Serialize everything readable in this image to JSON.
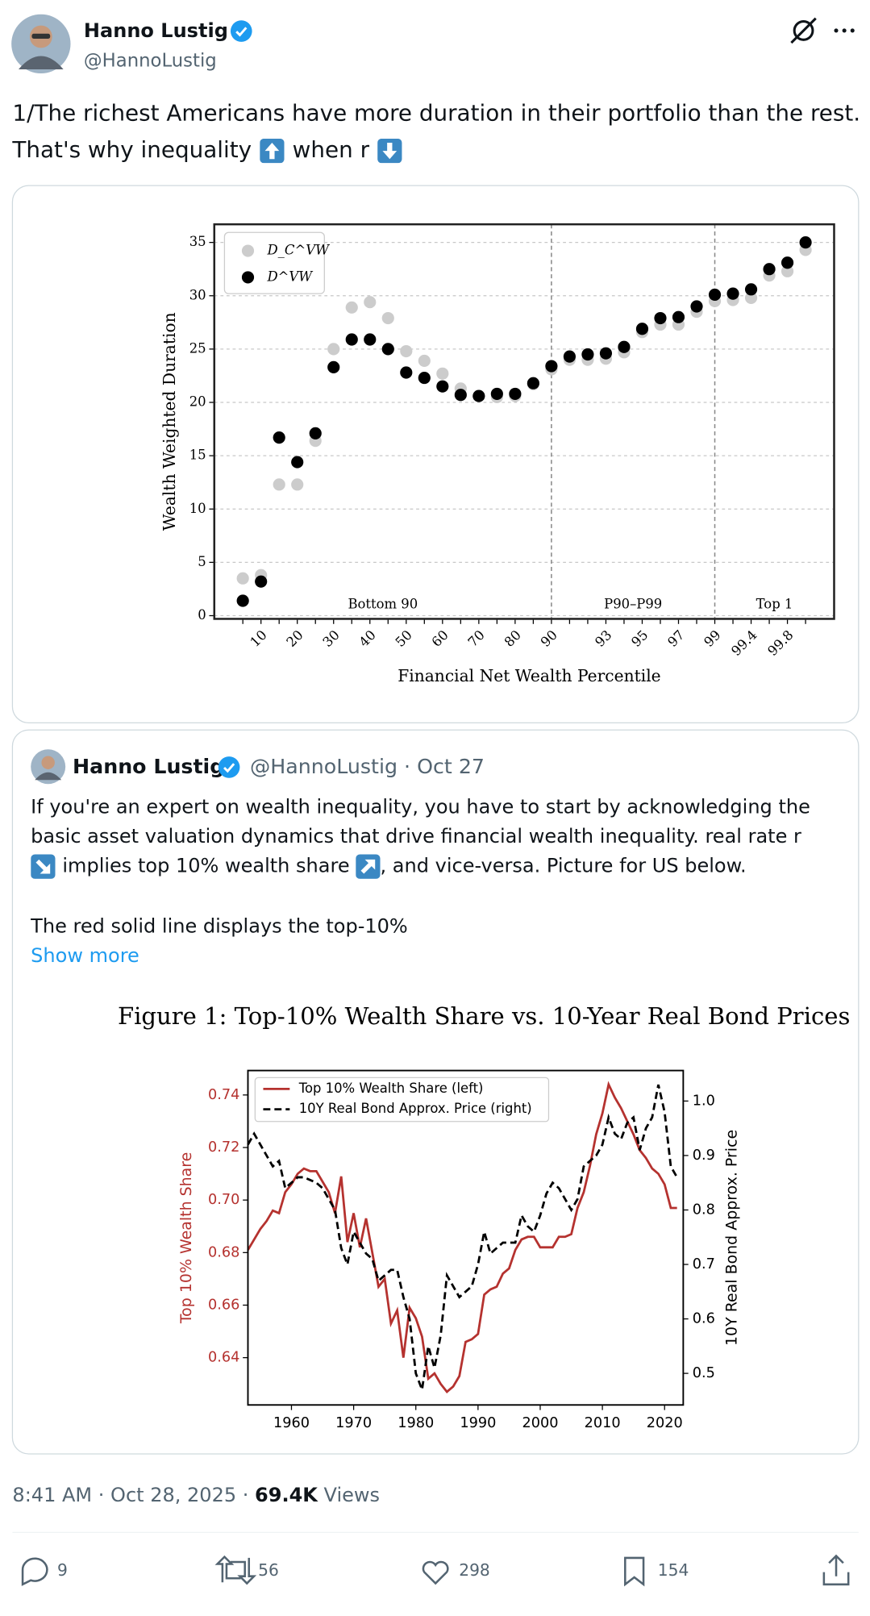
{
  "tweet": {
    "author": {
      "name": "Hanno Lustig",
      "handle": "@HannoLustig"
    },
    "text": [
      "1/The richest Americans have more duration in their portfolio than the rest.",
      "That's why inequality",
      "when r"
    ],
    "quote": {
      "name": "Hanno Lustig",
      "meta": "@HannoLustig · Oct 27",
      "lines": [
        "If you're an expert on wealth inequality, you have to start by acknowledging the",
        "basic asset valuation dynamics that drive financial wealth inequality.  real rate r",
        "implies top 10% wealth share",
        ", and vice-versa. Picture for US below.",
        "The red solid line displays the top-10%"
      ],
      "show_more": "Show more"
    },
    "footer": {
      "time": "8:41 AM · Oct 28, 2025 · ",
      "views": "69.4K",
      "views_label": " Views"
    },
    "actions": {
      "replies": 9,
      "reposts": 56,
      "likes": 298,
      "bookmarks": 154
    }
  },
  "chart_data": [
    {
      "type": "scatter",
      "xlabel": "Financial Net Wealth Percentile",
      "ylabel": "Wealth Weighted Duration",
      "categories": [
        null,
        "10",
        null,
        "20",
        null,
        "30",
        null,
        "40",
        null,
        "50",
        null,
        "60",
        null,
        "70",
        null,
        "80",
        null,
        "90",
        null,
        null,
        "93",
        null,
        "95",
        null,
        "97",
        null,
        "99",
        null,
        "99.4",
        null,
        "99.8",
        null
      ],
      "series": [
        {
          "name": "D_C^VW",
          "color": "#cccccc",
          "values": [
            3.5,
            3.8,
            12.3,
            12.3,
            16.4,
            25.0,
            28.9,
            29.4,
            27.9,
            24.8,
            23.9,
            22.7,
            21.3,
            20.6,
            20.5,
            20.6,
            21.7,
            23.1,
            24.0,
            24.0,
            24.1,
            24.7,
            26.6,
            27.3,
            27.3,
            28.5,
            29.5,
            29.6,
            29.8,
            31.9,
            32.3,
            34.3
          ]
        },
        {
          "name": "D^VW",
          "color": "#000000",
          "values": [
            1.4,
            3.2,
            16.7,
            14.4,
            17.1,
            23.3,
            25.9,
            25.9,
            25.0,
            22.8,
            22.3,
            21.5,
            20.7,
            20.6,
            20.8,
            20.8,
            21.8,
            23.4,
            24.3,
            24.5,
            24.6,
            25.2,
            26.9,
            27.9,
            28.0,
            29.0,
            30.1,
            30.2,
            30.6,
            32.5,
            33.1,
            35.0
          ]
        }
      ],
      "ylim": [
        -0.3,
        36.7
      ],
      "yticks": [
        0,
        5,
        10,
        15,
        20,
        25,
        30,
        35
      ],
      "grid": true,
      "legend": "upper left",
      "vlines": [
        "90",
        "99"
      ],
      "annotations": [
        "Bottom 90",
        "P90–P99",
        "Top 1"
      ]
    },
    {
      "type": "line",
      "title": "Figure 1: Top-10% Wealth Share vs. 10-Year Real Bond Prices",
      "ylabel": "Top 10% Wealth Share",
      "y2label": "10Y Real Bond Approx. Price",
      "x": [
        1953,
        1954,
        1955,
        1956,
        1957,
        1958,
        1959,
        1960,
        1961,
        1962,
        1963,
        1964,
        1965,
        1966,
        1967,
        1968,
        1969,
        1970,
        1971,
        1972,
        1973,
        1974,
        1975,
        1976,
        1977,
        1978,
        1979,
        1980,
        1981,
        1982,
        1983,
        1984,
        1985,
        1986,
        1987,
        1988,
        1989,
        1990,
        1991,
        1992,
        1993,
        1994,
        1995,
        1996,
        1997,
        1998,
        1999,
        2000,
        2001,
        2002,
        2003,
        2004,
        2005,
        2006,
        2007,
        2008,
        2009,
        2010,
        2011,
        2012,
        2013,
        2014,
        2015,
        2016,
        2017,
        2018,
        2019,
        2020,
        2021,
        2022
      ],
      "series": [
        {
          "name": "Top 10% Wealth Share (left)",
          "color": "#b5322f",
          "linestyle": "solid",
          "values": [
            0.681,
            0.685,
            0.689,
            0.692,
            0.696,
            0.695,
            0.703,
            0.706,
            0.71,
            0.712,
            0.711,
            0.711,
            0.707,
            0.703,
            0.695,
            0.709,
            0.684,
            0.695,
            0.682,
            0.693,
            0.68,
            0.667,
            0.67,
            0.653,
            0.658,
            0.64,
            0.659,
            0.655,
            0.648,
            0.632,
            0.634,
            0.63,
            0.627,
            0.629,
            0.633,
            0.646,
            0.647,
            0.649,
            0.664,
            0.666,
            0.667,
            0.672,
            0.674,
            0.681,
            0.685,
            0.686,
            0.686,
            0.682,
            0.682,
            0.682,
            0.686,
            0.686,
            0.687,
            0.697,
            0.703,
            0.713,
            0.725,
            0.733,
            0.744,
            0.739,
            0.735,
            0.73,
            0.725,
            0.719,
            0.716,
            0.712,
            0.71,
            0.706,
            0.697,
            0.697
          ]
        },
        {
          "name": "10Y Real Bond Approx. Price (right)",
          "color": "#000000",
          "linestyle": "dashed",
          "axis": "y2",
          "values": [
            0.92,
            0.94,
            0.92,
            0.9,
            0.88,
            0.89,
            0.84,
            0.85,
            0.86,
            0.86,
            0.855,
            0.85,
            0.84,
            0.82,
            0.8,
            0.73,
            0.7,
            0.76,
            0.74,
            0.72,
            0.71,
            0.67,
            0.68,
            0.69,
            0.69,
            0.64,
            0.6,
            0.5,
            0.47,
            0.55,
            0.51,
            0.57,
            0.68,
            0.66,
            0.64,
            0.65,
            0.66,
            0.7,
            0.76,
            0.72,
            0.73,
            0.74,
            0.74,
            0.74,
            0.79,
            0.77,
            0.76,
            0.79,
            0.83,
            0.85,
            0.84,
            0.82,
            0.8,
            0.82,
            0.88,
            0.89,
            0.9,
            0.92,
            0.97,
            0.94,
            0.93,
            0.96,
            0.97,
            0.91,
            0.95,
            0.97,
            1.03,
            0.98,
            0.88,
            0.86
          ]
        }
      ],
      "xlim": [
        1953,
        2023
      ],
      "xticks": [
        1960,
        1970,
        1980,
        1990,
        2000,
        2010,
        2020
      ],
      "ylim": [
        0.622,
        0.7493
      ],
      "yticks": [
        0.64,
        0.66,
        0.68,
        {
          "value": 0.7,
          "label": "0.70"
        },
        0.72,
        0.74
      ],
      "y2lim": [
        0.442,
        1.056
      ],
      "y2ticks": [
        0.5,
        0.6,
        0.7,
        0.8,
        0.9,
        {
          "value": 1,
          "label": "1.0"
        }
      ],
      "grid": false,
      "legend": "upper left"
    }
  ]
}
